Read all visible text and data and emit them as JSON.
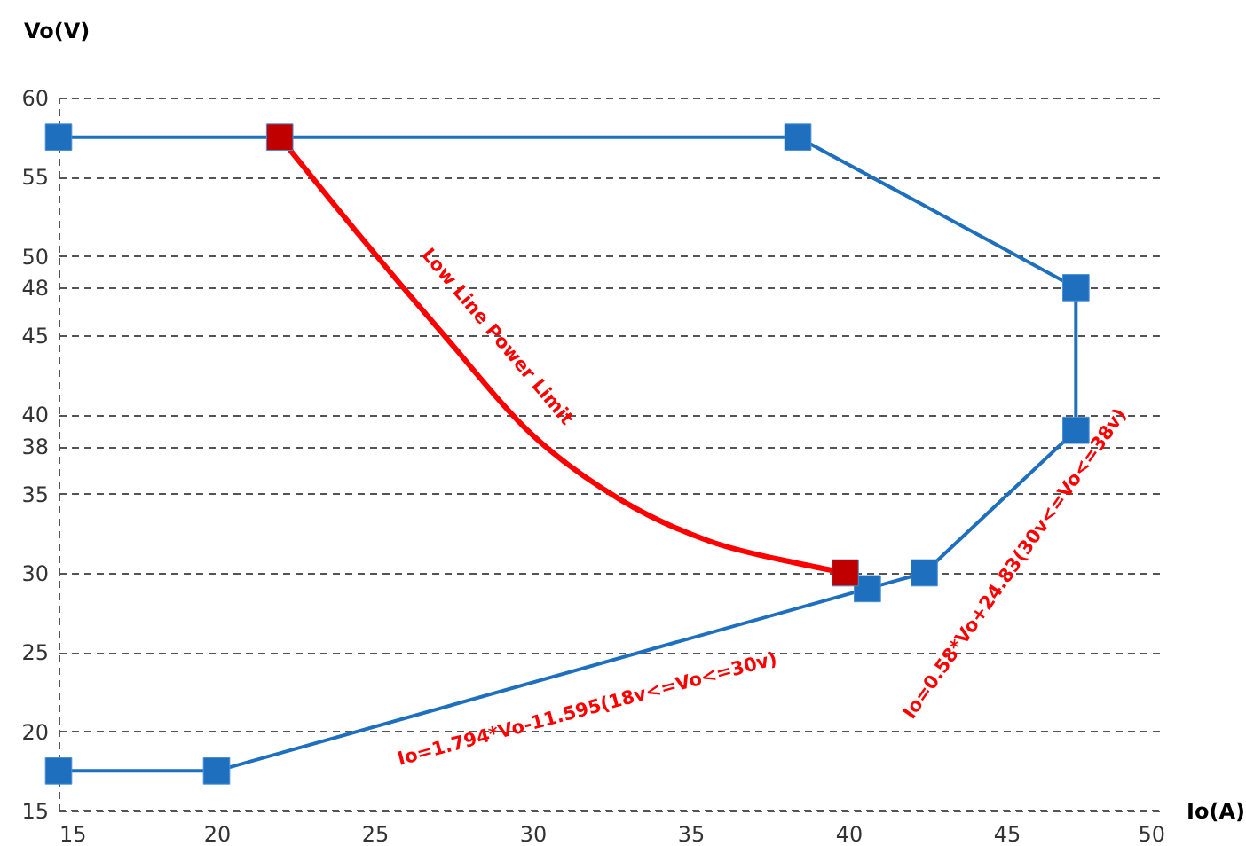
{
  "chart_data": {
    "type": "line",
    "xlabel": "Io(A)",
    "ylabel": "Vo(V)",
    "xlim": [
      15,
      50
    ],
    "xticks": [
      15,
      20,
      25,
      30,
      35,
      40,
      45,
      50
    ],
    "ylim": [
      15,
      60
    ],
    "yticks": [
      15,
      20,
      25,
      30,
      35,
      38,
      40,
      45,
      48,
      50,
      55,
      60
    ],
    "grid": "y",
    "line_style": "solid",
    "series": [
      {
        "color": "#1f6fbf",
        "marker": "square",
        "x": [
          15,
          38.4,
          47.2,
          47.2,
          42.4,
          40.6,
          20,
          15
        ],
        "values": [
          57.5,
          57.5,
          48,
          39,
          30,
          29,
          17.5,
          17.5
        ]
      },
      {
        "color": "#ff0000",
        "marker": "none",
        "x": [
          22,
          24.4,
          27.2,
          30,
          32.8,
          35.6,
          38.4,
          39.9
        ],
        "values": [
          57.5,
          51.6,
          45,
          38.7,
          34.6,
          32,
          30.6,
          30
        ]
      },
      {
        "type": "scatter",
        "color": "#c00000",
        "marker": "square",
        "x": [
          22,
          39.9
        ],
        "values": [
          57.5,
          30
        ]
      }
    ],
    "annotations": [
      "Low Line Power Limit",
      "Io=1.794*Vo-11.595(18v<=Vo<=30v)",
      "Io=0.58*Vo+24.83(30v<=Vo<=38v)"
    ]
  }
}
